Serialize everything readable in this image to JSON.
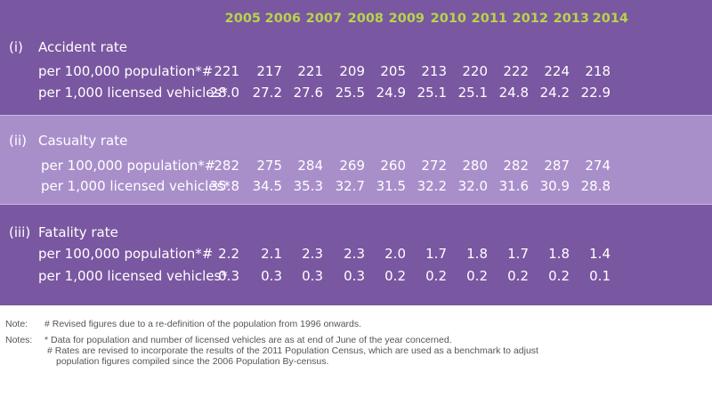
{
  "years": [
    "2005",
    "2006",
    "2007",
    "2008",
    "2009",
    "2010",
    "2011",
    "2012",
    "2013",
    "2014"
  ],
  "sections": [
    {
      "num": "(i)",
      "title": "Accident rate",
      "rows": [
        {
          "label": "per 100,000 population*#",
          "values": [
            "221",
            "217",
            "221",
            "209",
            "205",
            "213",
            "220",
            "222",
            "224",
            "218"
          ]
        },
        {
          "label": "per 1,000 licensed vehicles*",
          "values": [
            "28.0",
            "27.2",
            "27.6",
            "25.5",
            "24.9",
            "25.1",
            "25.1",
            "24.8",
            "24.2",
            "22.9"
          ]
        }
      ]
    },
    {
      "num": "(ii)",
      "title": "Casualty rate",
      "rows": [
        {
          "label": "per 100,000 population*#",
          "values": [
            "282",
            "275",
            "284",
            "269",
            "260",
            "272",
            "280",
            "282",
            "287",
            "274"
          ]
        },
        {
          "label": "per 1,000 licensed vehicles*",
          "values": [
            "35.8",
            "34.5",
            "35.3",
            "32.7",
            "31.5",
            "32.2",
            "32.0",
            "31.6",
            "30.9",
            "28.8"
          ]
        }
      ]
    },
    {
      "num": "(iii)",
      "title": "Fatality rate",
      "rows": [
        {
          "label": "per 100,000 population*#",
          "values": [
            "2.2",
            "2.1",
            "2.3",
            "2.3",
            "2.0",
            "1.7",
            "1.8",
            "1.7",
            "1.8",
            "1.4"
          ]
        },
        {
          "label": "per 1,000 licensed vehicles*",
          "values": [
            "0.3",
            "0.3",
            "0.3",
            "0.3",
            "0.2",
            "0.2",
            "0.2",
            "0.2",
            "0.2",
            "0.1"
          ]
        }
      ]
    }
  ],
  "notes": {
    "note_label": "Note:",
    "note_text": "# Revised figures due to a re-definition of the population from 1996 onwards.",
    "notes_label": "Notes:",
    "notes_text1": "* Data for population and number of licensed vehicles are as at end of June of the year concerned.",
    "notes_text2": "# Rates are revised to incorporate the results of the 2011 Population Census, which are used as a benchmark to adjust",
    "notes_text3": "population figures compiled since the 2006 Population By-census."
  },
  "colors": {
    "panel": "#7a57a1",
    "band": "#a98fca",
    "year_header": "#b7d44a",
    "text": "#ffffff",
    "notes_text": "#555555"
  }
}
